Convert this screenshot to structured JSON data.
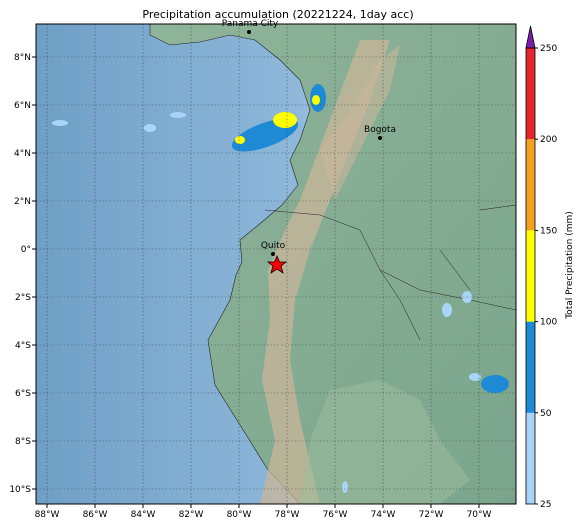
{
  "title": "Precipitation accumulation (20221224, 1day acc)",
  "lon_ticks": [
    "88°W",
    "86°W",
    "84°W",
    "82°W",
    "80°W",
    "78°W",
    "76°W",
    "74°W",
    "72°W",
    "70°W"
  ],
  "lat_ticks": [
    "8°N",
    "6°N",
    "4°N",
    "2°N",
    "0°",
    "2°S",
    "4°S",
    "6°S",
    "8°S",
    "10°S"
  ],
  "cities": [
    {
      "name": "Panama City"
    },
    {
      "name": "Bogota"
    },
    {
      "name": "Quito"
    }
  ],
  "colorbar": {
    "label": "Total Precipitation (mm)",
    "ticks": [
      25,
      50,
      100,
      150,
      200,
      250
    ],
    "colors": [
      "#a8d4f7",
      "#1e8ad6",
      "#ffff00",
      "#f4a21e",
      "#e3262b"
    ],
    "extend_color": "#7a1fa8"
  }
}
